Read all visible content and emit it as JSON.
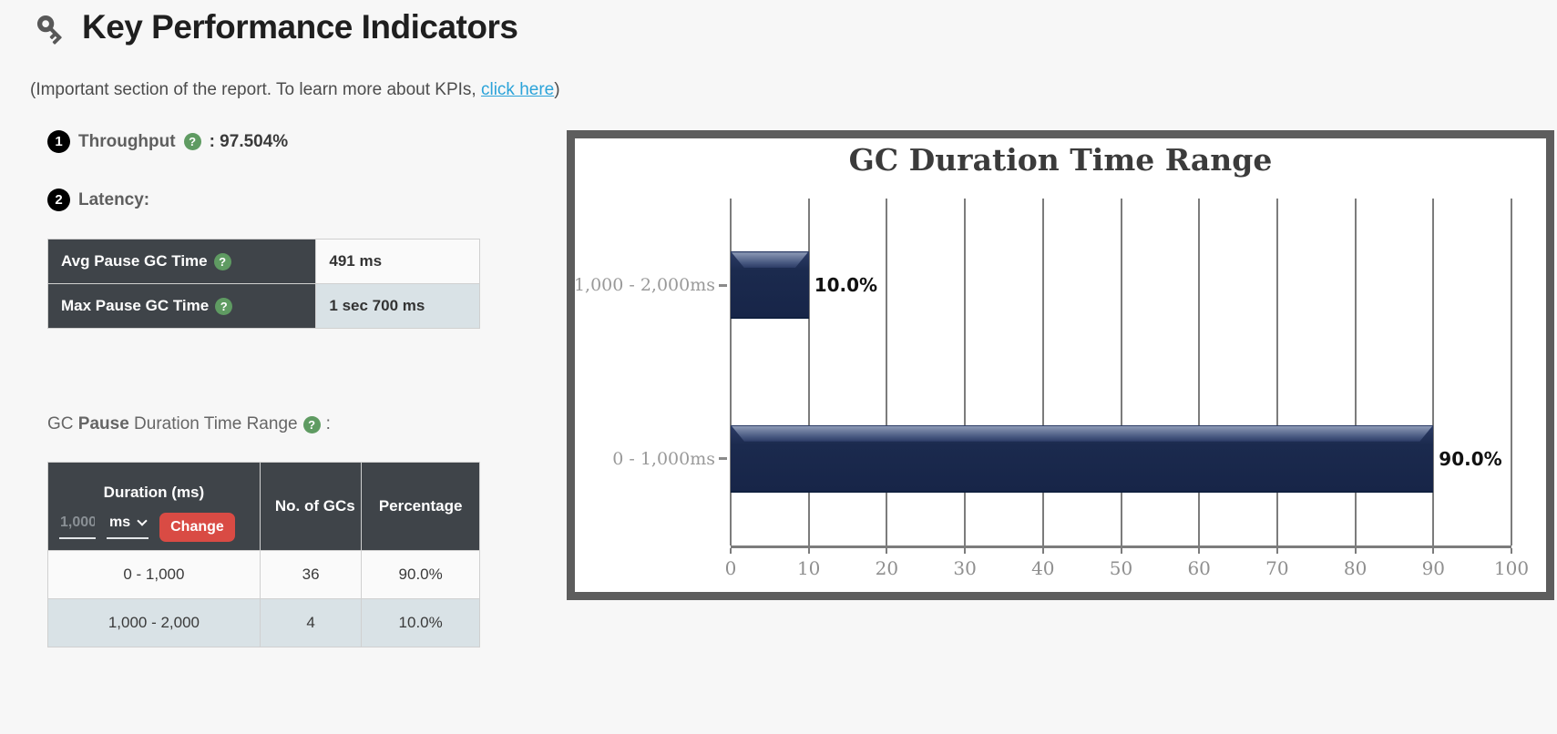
{
  "header": {
    "title": "Key Performance Indicators"
  },
  "subtitle": {
    "prefix": "(Important section of the report. To learn more about KPIs, ",
    "link_text": "click here",
    "suffix": ")"
  },
  "kpis": {
    "throughput": {
      "number": "1",
      "label": "Throughput",
      "help_glyph": "?",
      "value": ": 97.504%"
    },
    "latency": {
      "number": "2",
      "label": "Latency:"
    }
  },
  "latency_table": {
    "rows": [
      {
        "label": "Avg Pause GC Time",
        "help_glyph": "?",
        "value": "491 ms"
      },
      {
        "label": "Max Pause GC Time",
        "help_glyph": "?",
        "value": "1 sec 700 ms"
      }
    ]
  },
  "gc_pause_section": {
    "prefix": "GC ",
    "bold": "Pause",
    "suffix": " Duration Time Range",
    "help_glyph": "?",
    "colon": ":"
  },
  "duration_table": {
    "col_duration": "Duration (ms)",
    "col_count": "No. of GCs",
    "col_percentage": "Percentage",
    "input_placeholder": "1,000",
    "unit_selected": "ms",
    "change_button": "Change",
    "rows": [
      {
        "duration": "0 - 1,000",
        "count": "36",
        "percentage": "90.0%"
      },
      {
        "duration": "1,000 - 2,000",
        "count": "4",
        "percentage": "10.0%"
      }
    ]
  },
  "chart_data": {
    "type": "bar",
    "orientation": "horizontal",
    "title": "GC Duration Time Range",
    "categories": [
      "1,000 - 2,000ms",
      "0 - 1,000ms"
    ],
    "values": [
      10.0,
      90.0
    ],
    "value_labels": [
      "10.0%",
      "90.0%"
    ],
    "xlabel": "",
    "ylabel": "",
    "xlim": [
      0,
      100
    ],
    "x_ticks": [
      0,
      10,
      20,
      30,
      40,
      50,
      60,
      70,
      80,
      90,
      100
    ],
    "grid": true,
    "legend": false,
    "bar_color": "#1b2a4e"
  },
  "icons": {
    "title_icon": "key-icon",
    "help_icon": "question-circle-icon"
  },
  "colors": {
    "page_bg": "#f7f7f7",
    "link": "#2ba3d9",
    "table_header_bg": "#3f4449",
    "row_alt_bg": "#d9e2e6",
    "danger_button": "#d94b44",
    "help_icon_bg": "#5f9b62",
    "bar_navy": "#1b2a4e",
    "chart_border": "#5d5d5d"
  }
}
